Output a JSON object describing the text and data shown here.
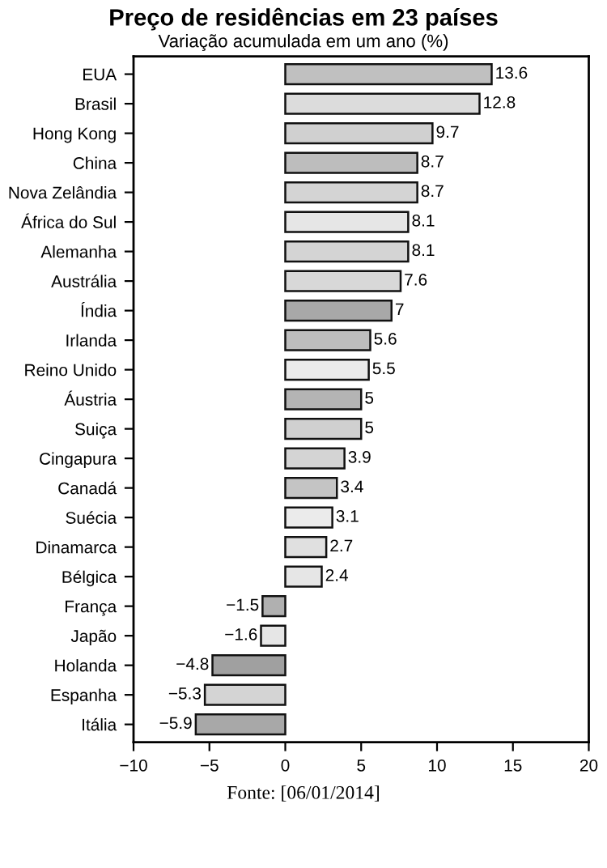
{
  "chart_data": {
    "type": "bar",
    "orientation": "horizontal",
    "title": "Preço de residências em 23 países",
    "subtitle": "Variação acumulada em um ano (%)",
    "categories": [
      "EUA",
      "Brasil",
      "Hong Kong",
      "China",
      "Nova Zelândia",
      "África do Sul",
      "Alemanha",
      "Austrália",
      "Índia",
      "Irlanda",
      "Reino Unido",
      "Áustria",
      "Suiça",
      "Cingapura",
      "Canadá",
      "Suécia",
      "Dinamarca",
      "Bélgica",
      "França",
      "Japão",
      "Holanda",
      "Espanha",
      "Itália"
    ],
    "values": [
      13.6,
      12.8,
      9.7,
      8.7,
      8.7,
      8.1,
      8.1,
      7.6,
      7,
      5.6,
      5.5,
      5,
      5,
      3.9,
      3.4,
      3.1,
      2.7,
      2.4,
      -1.5,
      -1.6,
      -4.8,
      -5.3,
      -5.9
    ],
    "colors": [
      "#c0c0c0",
      "#dcdcdc",
      "#d0d0d0",
      "#bdbdbd",
      "#d4d4d4",
      "#e6e6e6",
      "#d4d4d4",
      "#d8d8d8",
      "#a8a8a8",
      "#bdbdbd",
      "#ebebeb",
      "#b4b4b4",
      "#d0d0d0",
      "#d4d4d4",
      "#c4c4c4",
      "#ebebeb",
      "#e0e0e0",
      "#e6e6e6",
      "#b0b0b0",
      "#e6e6e6",
      "#a0a0a0",
      "#d4d4d4",
      "#a8a8a8"
    ],
    "xlim": [
      -10,
      20
    ],
    "xticks": [
      -10,
      -5,
      0,
      5,
      10,
      15,
      20
    ],
    "data_labels": true,
    "grid": false,
    "annotations": [
      "Fonte: [06/01/2014]"
    ]
  }
}
